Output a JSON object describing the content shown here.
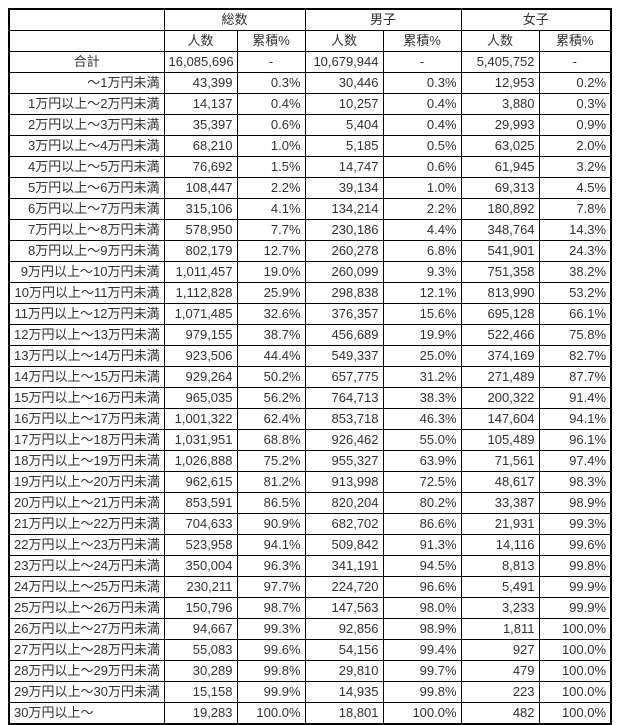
{
  "chart_data": {
    "type": "table",
    "column_groups": [
      "総数",
      "男子",
      "女子"
    ],
    "sub_columns": [
      "人数",
      "累積%"
    ],
    "highlight_colors": {
      "row_label_background": "#FFF2CC",
      "cell_background": "#FFC000"
    },
    "rows": [
      {
        "label": "合計",
        "values": [
          "16,085,696",
          "-",
          "10,679,944",
          "-",
          "5,405,752",
          "-"
        ],
        "label_highlight": false,
        "highlight_value_index": null
      },
      {
        "label": "～1万円未満",
        "values": [
          "43,399",
          "0.3%",
          "30,446",
          "0.3%",
          "12,953",
          "0.2%"
        ],
        "label_highlight": false,
        "highlight_value_index": null
      },
      {
        "label": "1万円以上～2万円未満",
        "values": [
          "14,137",
          "0.4%",
          "10,257",
          "0.4%",
          "3,880",
          "0.3%"
        ],
        "label_highlight": false,
        "highlight_value_index": null
      },
      {
        "label": "2万円以上～3万円未満",
        "values": [
          "35,397",
          "0.6%",
          "5,404",
          "0.4%",
          "29,993",
          "0.9%"
        ],
        "label_highlight": false,
        "highlight_value_index": null
      },
      {
        "label": "3万円以上～4万円未満",
        "values": [
          "68,210",
          "1.0%",
          "5,185",
          "0.5%",
          "63,025",
          "2.0%"
        ],
        "label_highlight": false,
        "highlight_value_index": null
      },
      {
        "label": "4万円以上～5万円未満",
        "values": [
          "76,692",
          "1.5%",
          "14,747",
          "0.6%",
          "61,945",
          "3.2%"
        ],
        "label_highlight": false,
        "highlight_value_index": null
      },
      {
        "label": "5万円以上～6万円未満",
        "values": [
          "108,447",
          "2.2%",
          "39,134",
          "1.0%",
          "69,313",
          "4.5%"
        ],
        "label_highlight": false,
        "highlight_value_index": null
      },
      {
        "label": "6万円以上～7万円未満",
        "values": [
          "315,106",
          "4.1%",
          "134,214",
          "2.2%",
          "180,892",
          "7.8%"
        ],
        "label_highlight": false,
        "highlight_value_index": null
      },
      {
        "label": "7万円以上～8万円未満",
        "values": [
          "578,950",
          "7.7%",
          "230,186",
          "4.4%",
          "348,764",
          "14.3%"
        ],
        "label_highlight": false,
        "highlight_value_index": null
      },
      {
        "label": "8万円以上～9万円未満",
        "values": [
          "802,179",
          "12.7%",
          "260,278",
          "6.8%",
          "541,901",
          "24.3%"
        ],
        "label_highlight": false,
        "highlight_value_index": null
      },
      {
        "label": "9万円以上～10万円未満",
        "values": [
          "1,011,457",
          "19.0%",
          "260,099",
          "9.3%",
          "751,358",
          "38.2%"
        ],
        "label_highlight": true,
        "highlight_value_index": 5
      },
      {
        "label": "10万円以上～11万円未満",
        "values": [
          "1,112,828",
          "25.9%",
          "298,838",
          "12.1%",
          "813,990",
          "53.2%"
        ],
        "label_highlight": true,
        "highlight_value_index": 5
      },
      {
        "label": "11万円以上～12万円未満",
        "values": [
          "1,071,485",
          "32.6%",
          "376,357",
          "15.6%",
          "695,128",
          "66.1%"
        ],
        "label_highlight": false,
        "highlight_value_index": null
      },
      {
        "label": "12万円以上～13万円未満",
        "values": [
          "979,155",
          "38.7%",
          "456,689",
          "19.9%",
          "522,466",
          "75.8%"
        ],
        "label_highlight": false,
        "highlight_value_index": null
      },
      {
        "label": "13万円以上～14万円未満",
        "values": [
          "923,506",
          "44.4%",
          "549,337",
          "25.0%",
          "374,169",
          "82.7%"
        ],
        "label_highlight": true,
        "highlight_value_index": 1
      },
      {
        "label": "14万円以上～15万円未満",
        "values": [
          "929,264",
          "50.2%",
          "657,775",
          "31.2%",
          "271,489",
          "87.7%"
        ],
        "label_highlight": true,
        "highlight_value_index": 1
      },
      {
        "label": "15万円以上～16万円未満",
        "values": [
          "965,035",
          "56.2%",
          "764,713",
          "38.3%",
          "200,322",
          "91.4%"
        ],
        "label_highlight": false,
        "highlight_value_index": null
      },
      {
        "label": "16万円以上～17万円未満",
        "values": [
          "1,001,322",
          "62.4%",
          "853,718",
          "46.3%",
          "147,604",
          "94.1%"
        ],
        "label_highlight": true,
        "highlight_value_index": 3
      },
      {
        "label": "17万円以上～18万円未満",
        "values": [
          "1,031,951",
          "68.8%",
          "926,462",
          "55.0%",
          "105,489",
          "96.1%"
        ],
        "label_highlight": true,
        "highlight_value_index": 3
      },
      {
        "label": "18万円以上～19万円未満",
        "values": [
          "1,026,888",
          "75.2%",
          "955,327",
          "63.9%",
          "71,561",
          "97.4%"
        ],
        "label_highlight": false,
        "highlight_value_index": null
      },
      {
        "label": "19万円以上～20万円未満",
        "values": [
          "962,615",
          "81.2%",
          "913,998",
          "72.5%",
          "48,617",
          "98.3%"
        ],
        "label_highlight": false,
        "highlight_value_index": null
      },
      {
        "label": "20万円以上～21万円未満",
        "values": [
          "853,591",
          "86.5%",
          "820,204",
          "80.2%",
          "33,387",
          "98.9%"
        ],
        "label_highlight": false,
        "highlight_value_index": null
      },
      {
        "label": "21万円以上～22万円未満",
        "values": [
          "704,633",
          "90.9%",
          "682,702",
          "86.6%",
          "21,931",
          "99.3%"
        ],
        "label_highlight": false,
        "highlight_value_index": null
      },
      {
        "label": "22万円以上～23万円未満",
        "values": [
          "523,958",
          "94.1%",
          "509,842",
          "91.3%",
          "14,116",
          "99.6%"
        ],
        "label_highlight": false,
        "highlight_value_index": null
      },
      {
        "label": "23万円以上～24万円未満",
        "values": [
          "350,004",
          "96.3%",
          "341,191",
          "94.5%",
          "8,813",
          "99.8%"
        ],
        "label_highlight": false,
        "highlight_value_index": null
      },
      {
        "label": "24万円以上～25万円未満",
        "values": [
          "230,211",
          "97.7%",
          "224,720",
          "96.6%",
          "5,491",
          "99.9%"
        ],
        "label_highlight": false,
        "highlight_value_index": null
      },
      {
        "label": "25万円以上～26万円未満",
        "values": [
          "150,796",
          "98.7%",
          "147,563",
          "98.0%",
          "3,233",
          "99.9%"
        ],
        "label_highlight": false,
        "highlight_value_index": null
      },
      {
        "label": "26万円以上～27万円未満",
        "values": [
          "94,667",
          "99.3%",
          "92,856",
          "98.9%",
          "1,811",
          "100.0%"
        ],
        "label_highlight": false,
        "highlight_value_index": null
      },
      {
        "label": "27万円以上～28万円未満",
        "values": [
          "55,083",
          "99.6%",
          "54,156",
          "99.4%",
          "927",
          "100.0%"
        ],
        "label_highlight": false,
        "highlight_value_index": null
      },
      {
        "label": "28万円以上～29万円未満",
        "values": [
          "30,289",
          "99.8%",
          "29,810",
          "99.7%",
          "479",
          "100.0%"
        ],
        "label_highlight": false,
        "highlight_value_index": null
      },
      {
        "label": "29万円以上～30万円未満",
        "values": [
          "15,158",
          "99.9%",
          "14,935",
          "99.8%",
          "223",
          "100.0%"
        ],
        "label_highlight": false,
        "highlight_value_index": null
      },
      {
        "label": "30万円以上～",
        "values": [
          "19,283",
          "100.0%",
          "18,801",
          "100.0%",
          "482",
          "100.0%"
        ],
        "label_highlight": false,
        "highlight_value_index": null
      }
    ]
  }
}
